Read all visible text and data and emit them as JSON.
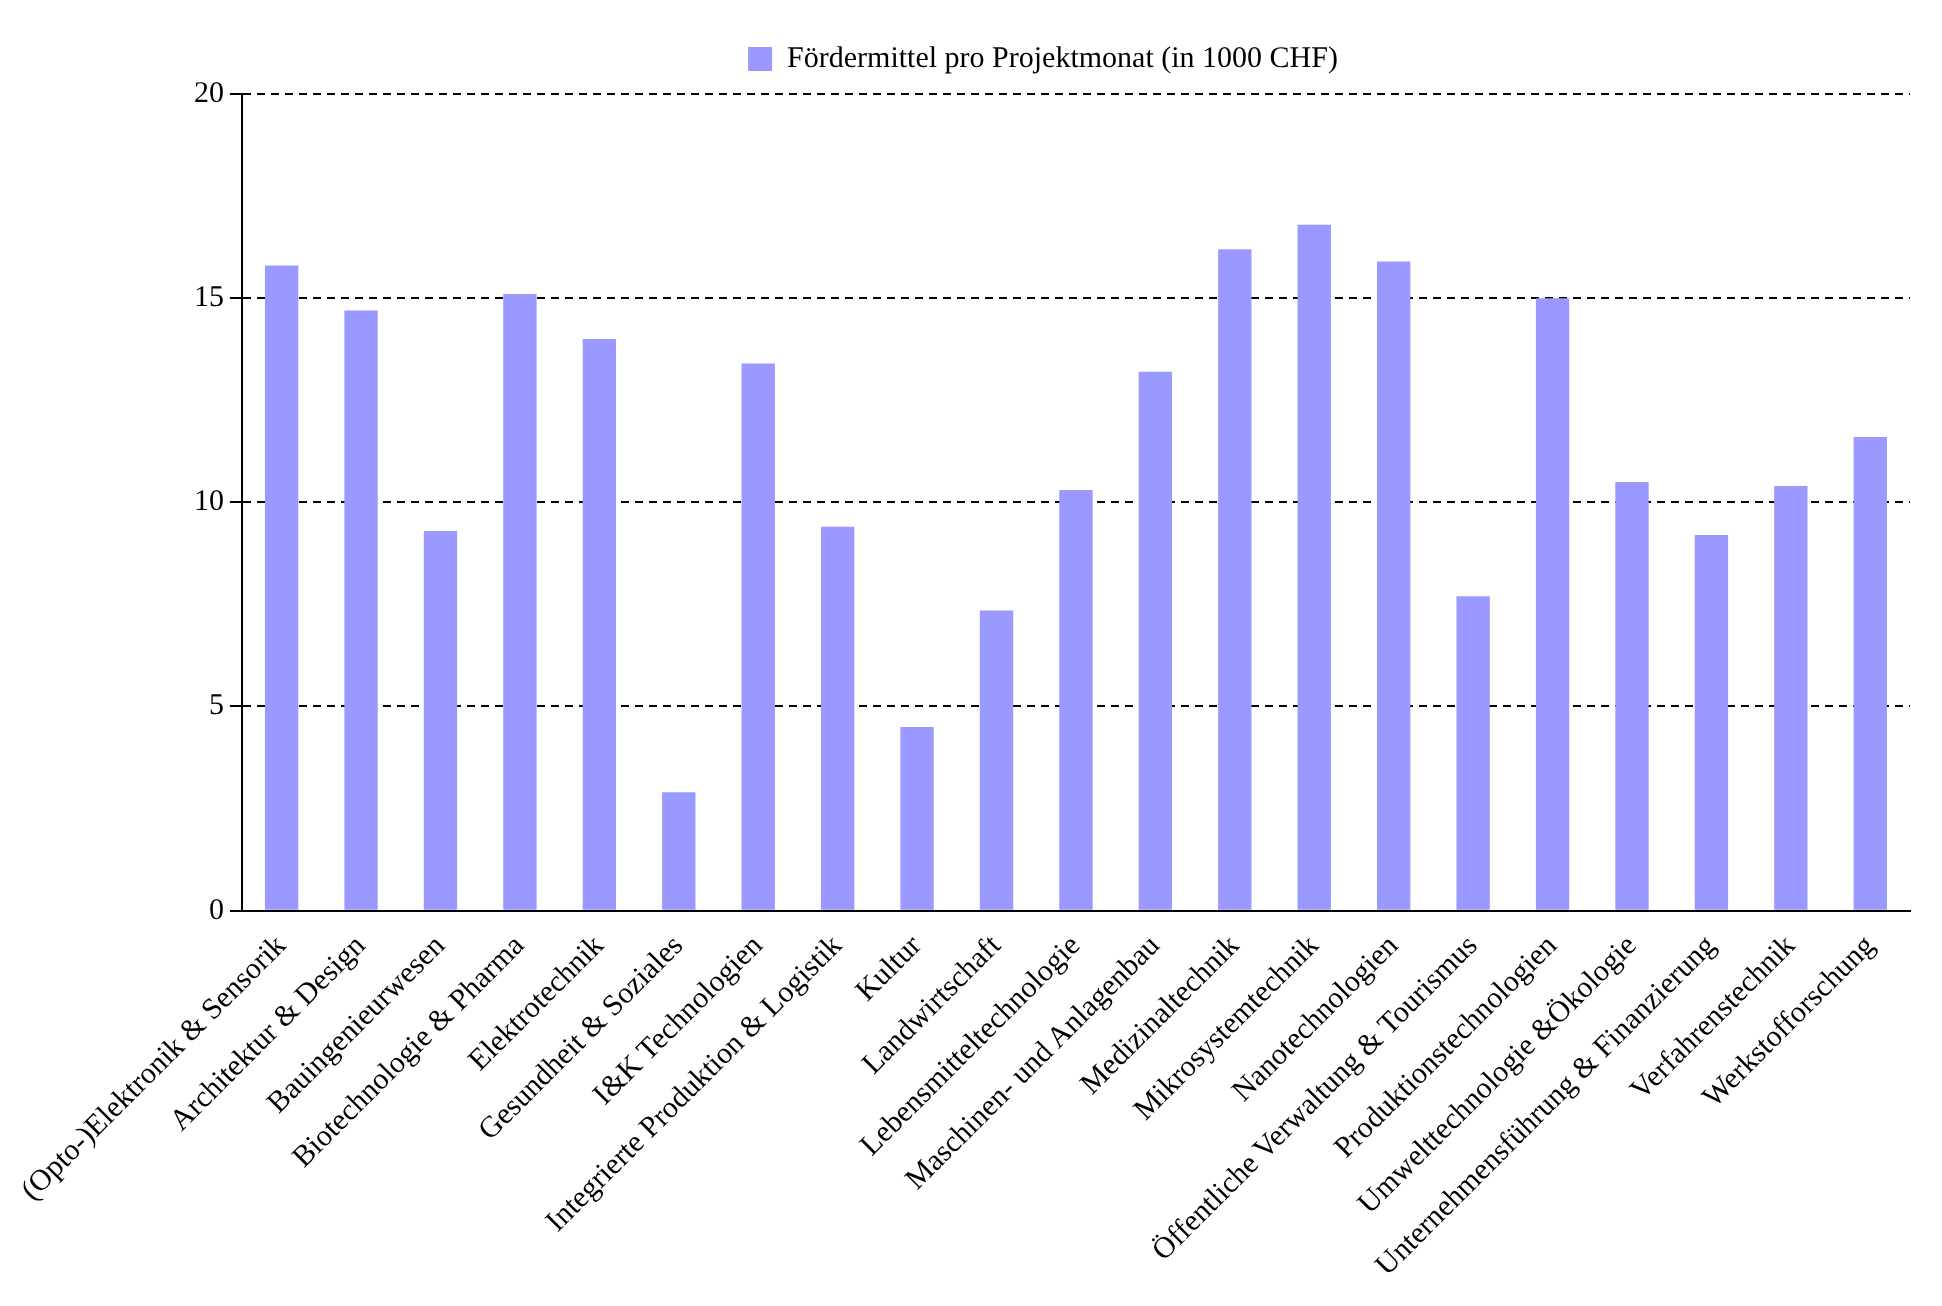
{
  "chart_data": {
    "type": "bar",
    "categories": [
      "(Opto-)Elektronik & Sensorik",
      "Architektur & Design",
      "Bauingenieurwesen",
      "Biotechnologie & Pharma",
      "Elektrotechnik",
      "Gesundheit & Soziales",
      "I&K Technologien",
      "Integrierte Produktion & Logistik",
      "Kultur",
      "Landwirtschaft",
      "Lebensmitteltechnologie",
      "Maschinen- und Anlagenbau",
      "Medizinaltechnik",
      "Mikrosystemtechnik",
      "Nanotechnologien",
      "Öffentliche Verwaltung & Tourismus",
      "Produktionstechnologien",
      "Umwelttechnologie &Ökologie",
      "Unternehmensführung & Finanzierung",
      "Verfahrenstechnik",
      "Werkstofforschung"
    ],
    "series": [
      {
        "name": "Fördermittel pro Projektmonat (in 1000 CHF)",
        "color": "#9999ff",
        "values": [
          15.8,
          14.7,
          9.3,
          15.1,
          14.0,
          2.9,
          13.4,
          9.4,
          4.5,
          7.35,
          10.3,
          13.2,
          16.2,
          16.8,
          15.9,
          7.7,
          15.0,
          10.5,
          9.2,
          10.4,
          11.6
        ]
      }
    ],
    "ylim": [
      0,
      20
    ],
    "yticks": [
      0,
      5,
      10,
      15,
      20
    ],
    "grid": "y",
    "legend": "top"
  }
}
